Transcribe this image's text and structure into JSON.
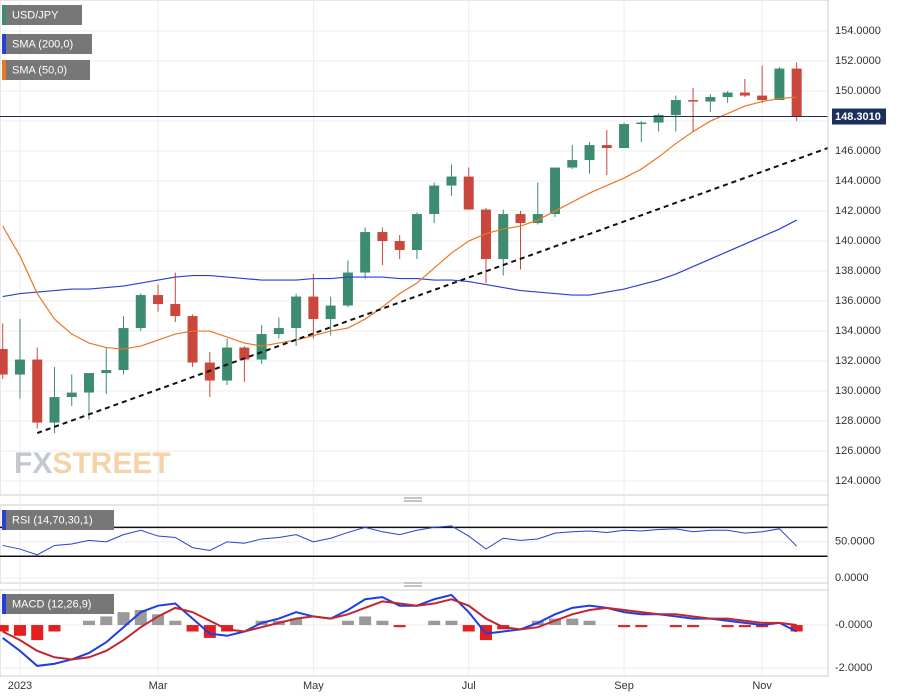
{
  "chart_data": [
    {
      "type": "candlestick",
      "name": "USD/JPY",
      "up_color": "#3d8c70",
      "down_color": "#c9473d",
      "categories": [
        null,
        "2023",
        null,
        null,
        null,
        null,
        null,
        null,
        null,
        "Mar",
        null,
        null,
        null,
        null,
        null,
        null,
        null,
        null,
        "May",
        null,
        null,
        null,
        null,
        null,
        null,
        null,
        null,
        "Jul",
        null,
        null,
        null,
        null,
        null,
        null,
        null,
        null,
        "Sep",
        null,
        null,
        null,
        null,
        null,
        null,
        null,
        "Nov",
        null,
        null
      ],
      "open": [
        132.8,
        131.1,
        132.1,
        127.9,
        129.6,
        129.9,
        131.2,
        131.4,
        134.2,
        136.4,
        135.8,
        135.0,
        131.9,
        130.7,
        132.9,
        132.1,
        133.8,
        134.2,
        136.3,
        134.8,
        135.7,
        137.9,
        140.6,
        140.0,
        139.4,
        141.8,
        143.7,
        144.3,
        142.1,
        138.8,
        141.8,
        141.2,
        141.8,
        144.9,
        145.4,
        146.4,
        146.2,
        147.8,
        147.9,
        148.4,
        149.4,
        149.3,
        149.6,
        149.9,
        149.7,
        149.4,
        151.5
      ],
      "high": [
        134.5,
        134.8,
        132.9,
        131.6,
        131.1,
        131.2,
        132.9,
        135.0,
        136.5,
        137.1,
        137.9,
        135.1,
        132.6,
        133.5,
        133.0,
        134.4,
        134.9,
        136.5,
        137.8,
        136.3,
        138.7,
        140.9,
        140.9,
        140.4,
        141.9,
        143.9,
        145.1,
        144.9,
        142.2,
        142.1,
        142.0,
        143.9,
        144.9,
        146.4,
        146.6,
        147.4,
        147.9,
        148.0,
        148.5,
        149.7,
        150.2,
        149.8,
        150.0,
        150.8,
        151.7,
        151.6,
        151.9
      ],
      "low": [
        130.8,
        129.5,
        127.5,
        127.2,
        129.0,
        128.1,
        129.8,
        131.1,
        134.0,
        135.3,
        134.6,
        131.6,
        129.6,
        130.4,
        130.6,
        131.8,
        133.5,
        133.0,
        133.5,
        133.7,
        135.6,
        137.5,
        138.4,
        138.8,
        138.8,
        141.2,
        143.0,
        142.1,
        137.2,
        137.7,
        138.1,
        141.1,
        141.6,
        144.8,
        144.5,
        144.4,
        146.2,
        146.6,
        147.3,
        147.3,
        147.3,
        148.6,
        149.2,
        149.6,
        149.2,
        149.4,
        148.0
      ],
      "close": [
        131.1,
        132.1,
        127.9,
        129.6,
        129.9,
        131.2,
        131.4,
        134.2,
        136.4,
        135.8,
        135.0,
        131.9,
        130.7,
        132.9,
        132.1,
        133.8,
        134.2,
        136.3,
        134.8,
        135.7,
        137.9,
        140.6,
        140.0,
        139.4,
        141.8,
        143.7,
        144.3,
        142.1,
        138.8,
        141.8,
        141.2,
        141.8,
        144.9,
        145.4,
        146.4,
        146.2,
        147.8,
        147.9,
        148.4,
        149.4,
        149.3,
        149.6,
        149.9,
        149.7,
        149.4,
        151.5,
        148.3
      ],
      "series": [
        {
          "name": "SMA (200,0)",
          "color": "#2a3fd4",
          "values": [
            136.3,
            136.5,
            136.6,
            136.7,
            136.8,
            136.8,
            136.9,
            137.0,
            137.2,
            137.4,
            137.6,
            137.7,
            137.7,
            137.6,
            137.5,
            137.4,
            137.4,
            137.4,
            137.5,
            137.5,
            137.6,
            137.6,
            137.6,
            137.5,
            137.5,
            137.4,
            137.4,
            137.3,
            137.1,
            136.9,
            136.7,
            136.6,
            136.5,
            136.4,
            136.4,
            136.6,
            136.8,
            137.1,
            137.4,
            137.8,
            138.3,
            138.8,
            139.3,
            139.8,
            140.3,
            140.8,
            141.4
          ]
        },
        {
          "name": "SMA (50,0)",
          "color": "#e8772a",
          "values": [
            141.0,
            139.0,
            136.5,
            134.8,
            133.8,
            133.2,
            132.9,
            132.8,
            133.0,
            133.4,
            133.8,
            134.0,
            134.0,
            133.6,
            133.2,
            133.0,
            133.2,
            133.4,
            133.7,
            134.0,
            134.2,
            134.8,
            135.6,
            136.5,
            137.2,
            138.2,
            139.2,
            140.0,
            140.5,
            140.8,
            141.0,
            141.4,
            142.0,
            142.6,
            143.2,
            143.7,
            144.2,
            144.8,
            145.6,
            146.5,
            147.3,
            148.0,
            148.5,
            149.0,
            149.3,
            149.5,
            149.6
          ]
        }
      ],
      "trendline": {
        "x": [
          2,
          47.8
        ],
        "values": [
          127.2,
          146.2
        ]
      },
      "last_price": {
        "value": 148.301,
        "label": "148.3010"
      },
      "watermark": [
        "FX",
        "STREET"
      ],
      "ylim": [
        123.07,
        156.07
      ],
      "yticks": [
        {
          "value": 124,
          "label": "124.0000"
        },
        {
          "value": 126,
          "label": "126.0000"
        },
        {
          "value": 128,
          "label": "128.0000"
        },
        {
          "value": 130,
          "label": "130.0000"
        },
        {
          "value": 132,
          "label": "132.0000"
        },
        {
          "value": 134,
          "label": "134.0000"
        },
        {
          "value": 136,
          "label": "136.0000"
        },
        {
          "value": 138,
          "label": "138.0000"
        },
        {
          "value": 140,
          "label": "140.0000"
        },
        {
          "value": 142,
          "label": "142.0000"
        },
        {
          "value": 144,
          "label": "144.0000"
        },
        {
          "value": 146,
          "label": "146.0000"
        },
        {
          "value": 148,
          "label": "148.0000"
        },
        {
          "value": 150,
          "label": "150.0000"
        },
        {
          "value": 152,
          "label": "152.0000"
        },
        {
          "value": 154,
          "label": "154.0000"
        }
      ],
      "grid": true
    },
    {
      "type": "line",
      "series": [
        {
          "name": "RSI (14,70,30,1)",
          "color": "#2a3fd4",
          "values": [
            45,
            40,
            32,
            45,
            47,
            52,
            50,
            60,
            66,
            58,
            56,
            42,
            38,
            50,
            48,
            54,
            56,
            60,
            50,
            55,
            63,
            70,
            64,
            60,
            66,
            70,
            72,
            58,
            40,
            55,
            52,
            54,
            62,
            64,
            65,
            63,
            66,
            65,
            67,
            68,
            64,
            66,
            66,
            62,
            64,
            68,
            44
          ]
        }
      ],
      "levels": [
        70,
        30
      ],
      "ylim": [
        -7,
        101
      ],
      "yticks": [
        {
          "value": 50,
          "label": "50.0000"
        },
        {
          "value": 0,
          "label": "0.0000"
        }
      ],
      "grid": true
    },
    {
      "type": "macd",
      "series": [
        {
          "name": "MACD (12,26,9)",
          "color": "#1f3de0",
          "values": [
            -0.6,
            -1.2,
            -1.9,
            -1.8,
            -1.6,
            -1.3,
            -0.8,
            -0.1,
            0.6,
            0.9,
            1.0,
            0.3,
            -0.4,
            -0.5,
            -0.3,
            0.1,
            0.3,
            0.6,
            0.4,
            0.3,
            0.7,
            1.2,
            1.3,
            0.9,
            0.9,
            1.2,
            1.4,
            0.6,
            -0.4,
            -0.3,
            -0.2,
            0.1,
            0.5,
            0.8,
            0.9,
            0.8,
            0.6,
            0.5,
            0.5,
            0.4,
            0.3,
            0.3,
            0.2,
            0.1,
            0.0,
            0.1,
            -0.3
          ]
        },
        {
          "color": "#c3262d",
          "values": [
            -0.3,
            -0.7,
            -1.2,
            -1.5,
            -1.6,
            -1.5,
            -1.2,
            -0.7,
            -0.1,
            0.4,
            0.8,
            0.6,
            0.2,
            -0.2,
            -0.3,
            -0.1,
            0.1,
            0.3,
            0.4,
            0.3,
            0.5,
            0.8,
            1.1,
            1.0,
            0.9,
            1.0,
            1.2,
            0.9,
            0.3,
            -0.1,
            -0.2,
            -0.1,
            0.2,
            0.5,
            0.7,
            0.8,
            0.7,
            0.6,
            0.5,
            0.5,
            0.4,
            0.3,
            0.3,
            0.2,
            0.1,
            0.1,
            0.0
          ]
        }
      ],
      "histogram": {
        "up_color": "#9a9a9a",
        "down_color": "#e51f1f",
        "values": [
          -0.3,
          -0.5,
          -0.7,
          -0.3,
          0.0,
          0.2,
          0.4,
          0.6,
          0.7,
          0.5,
          0.2,
          -0.3,
          -0.6,
          -0.3,
          0.0,
          0.2,
          0.2,
          0.3,
          0.0,
          0.0,
          0.2,
          0.4,
          0.2,
          -0.1,
          0.0,
          0.2,
          0.2,
          -0.3,
          -0.7,
          -0.2,
          0.0,
          0.2,
          0.3,
          0.3,
          0.2,
          0.0,
          -0.1,
          -0.1,
          0.0,
          -0.1,
          -0.1,
          0.0,
          -0.1,
          -0.1,
          -0.1,
          0.0,
          -0.3
        ]
      },
      "ylim": [
        -2.37,
        1.63
      ],
      "yticks": [
        {
          "value": 0,
          "label": "-0.0000"
        },
        {
          "value": -2,
          "label": "-2.0000"
        }
      ],
      "grid": true
    }
  ]
}
